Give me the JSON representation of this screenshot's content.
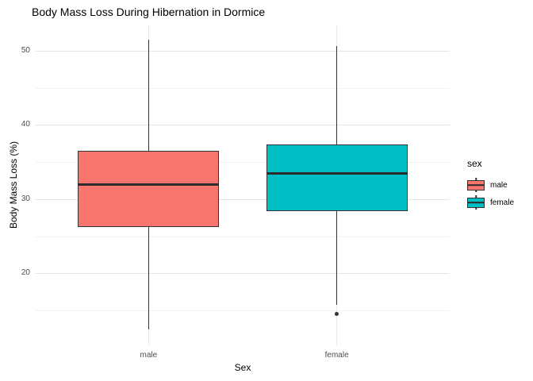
{
  "title": "Body Mass Loss During Hibernation in Dormice",
  "axes": {
    "x_label": "Sex",
    "y_label": "Body Mass Loss (%)"
  },
  "legend": {
    "title": "sex",
    "items": [
      {
        "label": "male",
        "color": "#F8766D"
      },
      {
        "label": "female",
        "color": "#00BFC4"
      }
    ]
  },
  "colors": {
    "box_border": "#333333",
    "grid_major": "#e4e4e4",
    "grid_minor": "#f2f2f2",
    "tick_text": "#4d4d4d",
    "background": "#ffffff"
  },
  "chart_data": {
    "type": "boxplot",
    "title": "Body Mass Loss During Hibernation in Dormice",
    "xlabel": "Sex",
    "ylabel": "Body Mass Loss (%)",
    "categories": [
      "male",
      "female"
    ],
    "series": [
      {
        "name": "male",
        "color": "#F8766D",
        "whisker_low": 12.4,
        "q1": 26.2,
        "median": 32.0,
        "q3": 36.5,
        "whisker_high": 51.5,
        "outliers": []
      },
      {
        "name": "female",
        "color": "#00BFC4",
        "whisker_low": 15.7,
        "q1": 28.4,
        "median": 33.5,
        "q3": 37.4,
        "whisker_high": 50.6,
        "outliers": [
          14.5
        ]
      }
    ],
    "ylim": [
      10.3,
      53.4
    ],
    "y_major_ticks": [
      20,
      30,
      40,
      50
    ],
    "y_minor_ticks": [
      15,
      25,
      35,
      45
    ],
    "grid": true,
    "legend_position": "right",
    "legend_title": "sex"
  }
}
